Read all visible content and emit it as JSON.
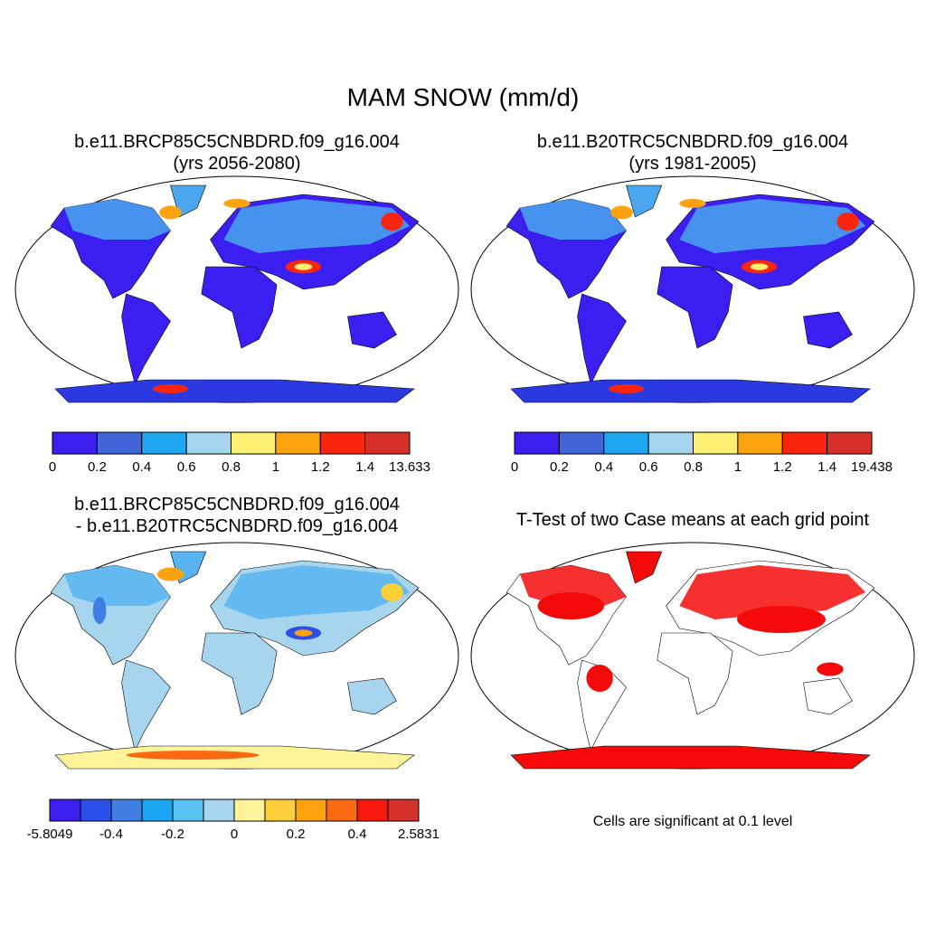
{
  "title": "MAM SNOW (mm/d)",
  "panels": [
    {
      "name": "case1",
      "title_line1": "b.e11.BRCP85C5CNBDRD.f09_g16.004",
      "title_line2": "(yrs 2056-2080)"
    },
    {
      "name": "case2",
      "title_line1": "b.e11.B20TRC5CNBDRD.f09_g16.004",
      "title_line2": "(yrs 1981-2005)"
    },
    {
      "name": "difference",
      "title_line1": "b.e11.BRCP85C5CNBDRD.f09_g16.004",
      "title_line2": "- b.e11.B20TRC5CNBDRD.f09_g16.004"
    },
    {
      "name": "ttest",
      "title_line1": "T-Test of two Case means at each grid point"
    }
  ],
  "colorbars": [
    {
      "name": "case1",
      "colors": [
        "#3a1ff0",
        "#4165d9",
        "#1ea7f0",
        "#a4d4ee",
        "#fdef72",
        "#fca20f",
        "#f9250d",
        "#d5302a"
      ],
      "labels": [
        "0",
        "0.2",
        "0.4",
        "0.6",
        "0.8",
        "1",
        "1.2",
        "1.4",
        "13.633"
      ]
    },
    {
      "name": "case2",
      "colors": [
        "#3a1ff0",
        "#4165d9",
        "#1ea7f0",
        "#a4d4ee",
        "#fdef72",
        "#fca20f",
        "#f9250d",
        "#d5302a"
      ],
      "labels": [
        "0",
        "0.2",
        "0.4",
        "0.6",
        "0.8",
        "1",
        "1.2",
        "1.4",
        "19.438"
      ]
    },
    {
      "name": "difference",
      "colors": [
        "#3a1ff0",
        "#2b4fe8",
        "#3f7fe3",
        "#1aa6f2",
        "#58c4f3",
        "#a8d5ee",
        "#fdf49a",
        "#fdd03a",
        "#fca20f",
        "#fb6a12",
        "#f51a0b",
        "#d5302a"
      ],
      "labels": [
        "-5.8049",
        "-0.4",
        "-0.2",
        "0",
        "0.2",
        "0.4",
        "2.5831"
      ]
    }
  ],
  "significance_note": "Cells are significant at 0.1 level",
  "map_fill": {
    "case1": {
      "land": "#3a1ff0",
      "north": "#4aa7ee",
      "antarctica": "#2a3ae0"
    },
    "case2": {
      "land": "#3a1ff0",
      "north": "#4aa7ee",
      "antarctica": "#2a3ae0"
    },
    "difference": {
      "land": "#a8d5ee",
      "north": "#58b4f0",
      "antarctica": "#fdf49a"
    },
    "ttest": {
      "land": "#ffffff",
      "north": "#f50a0a",
      "antarctica": "#f50a0a"
    }
  }
}
